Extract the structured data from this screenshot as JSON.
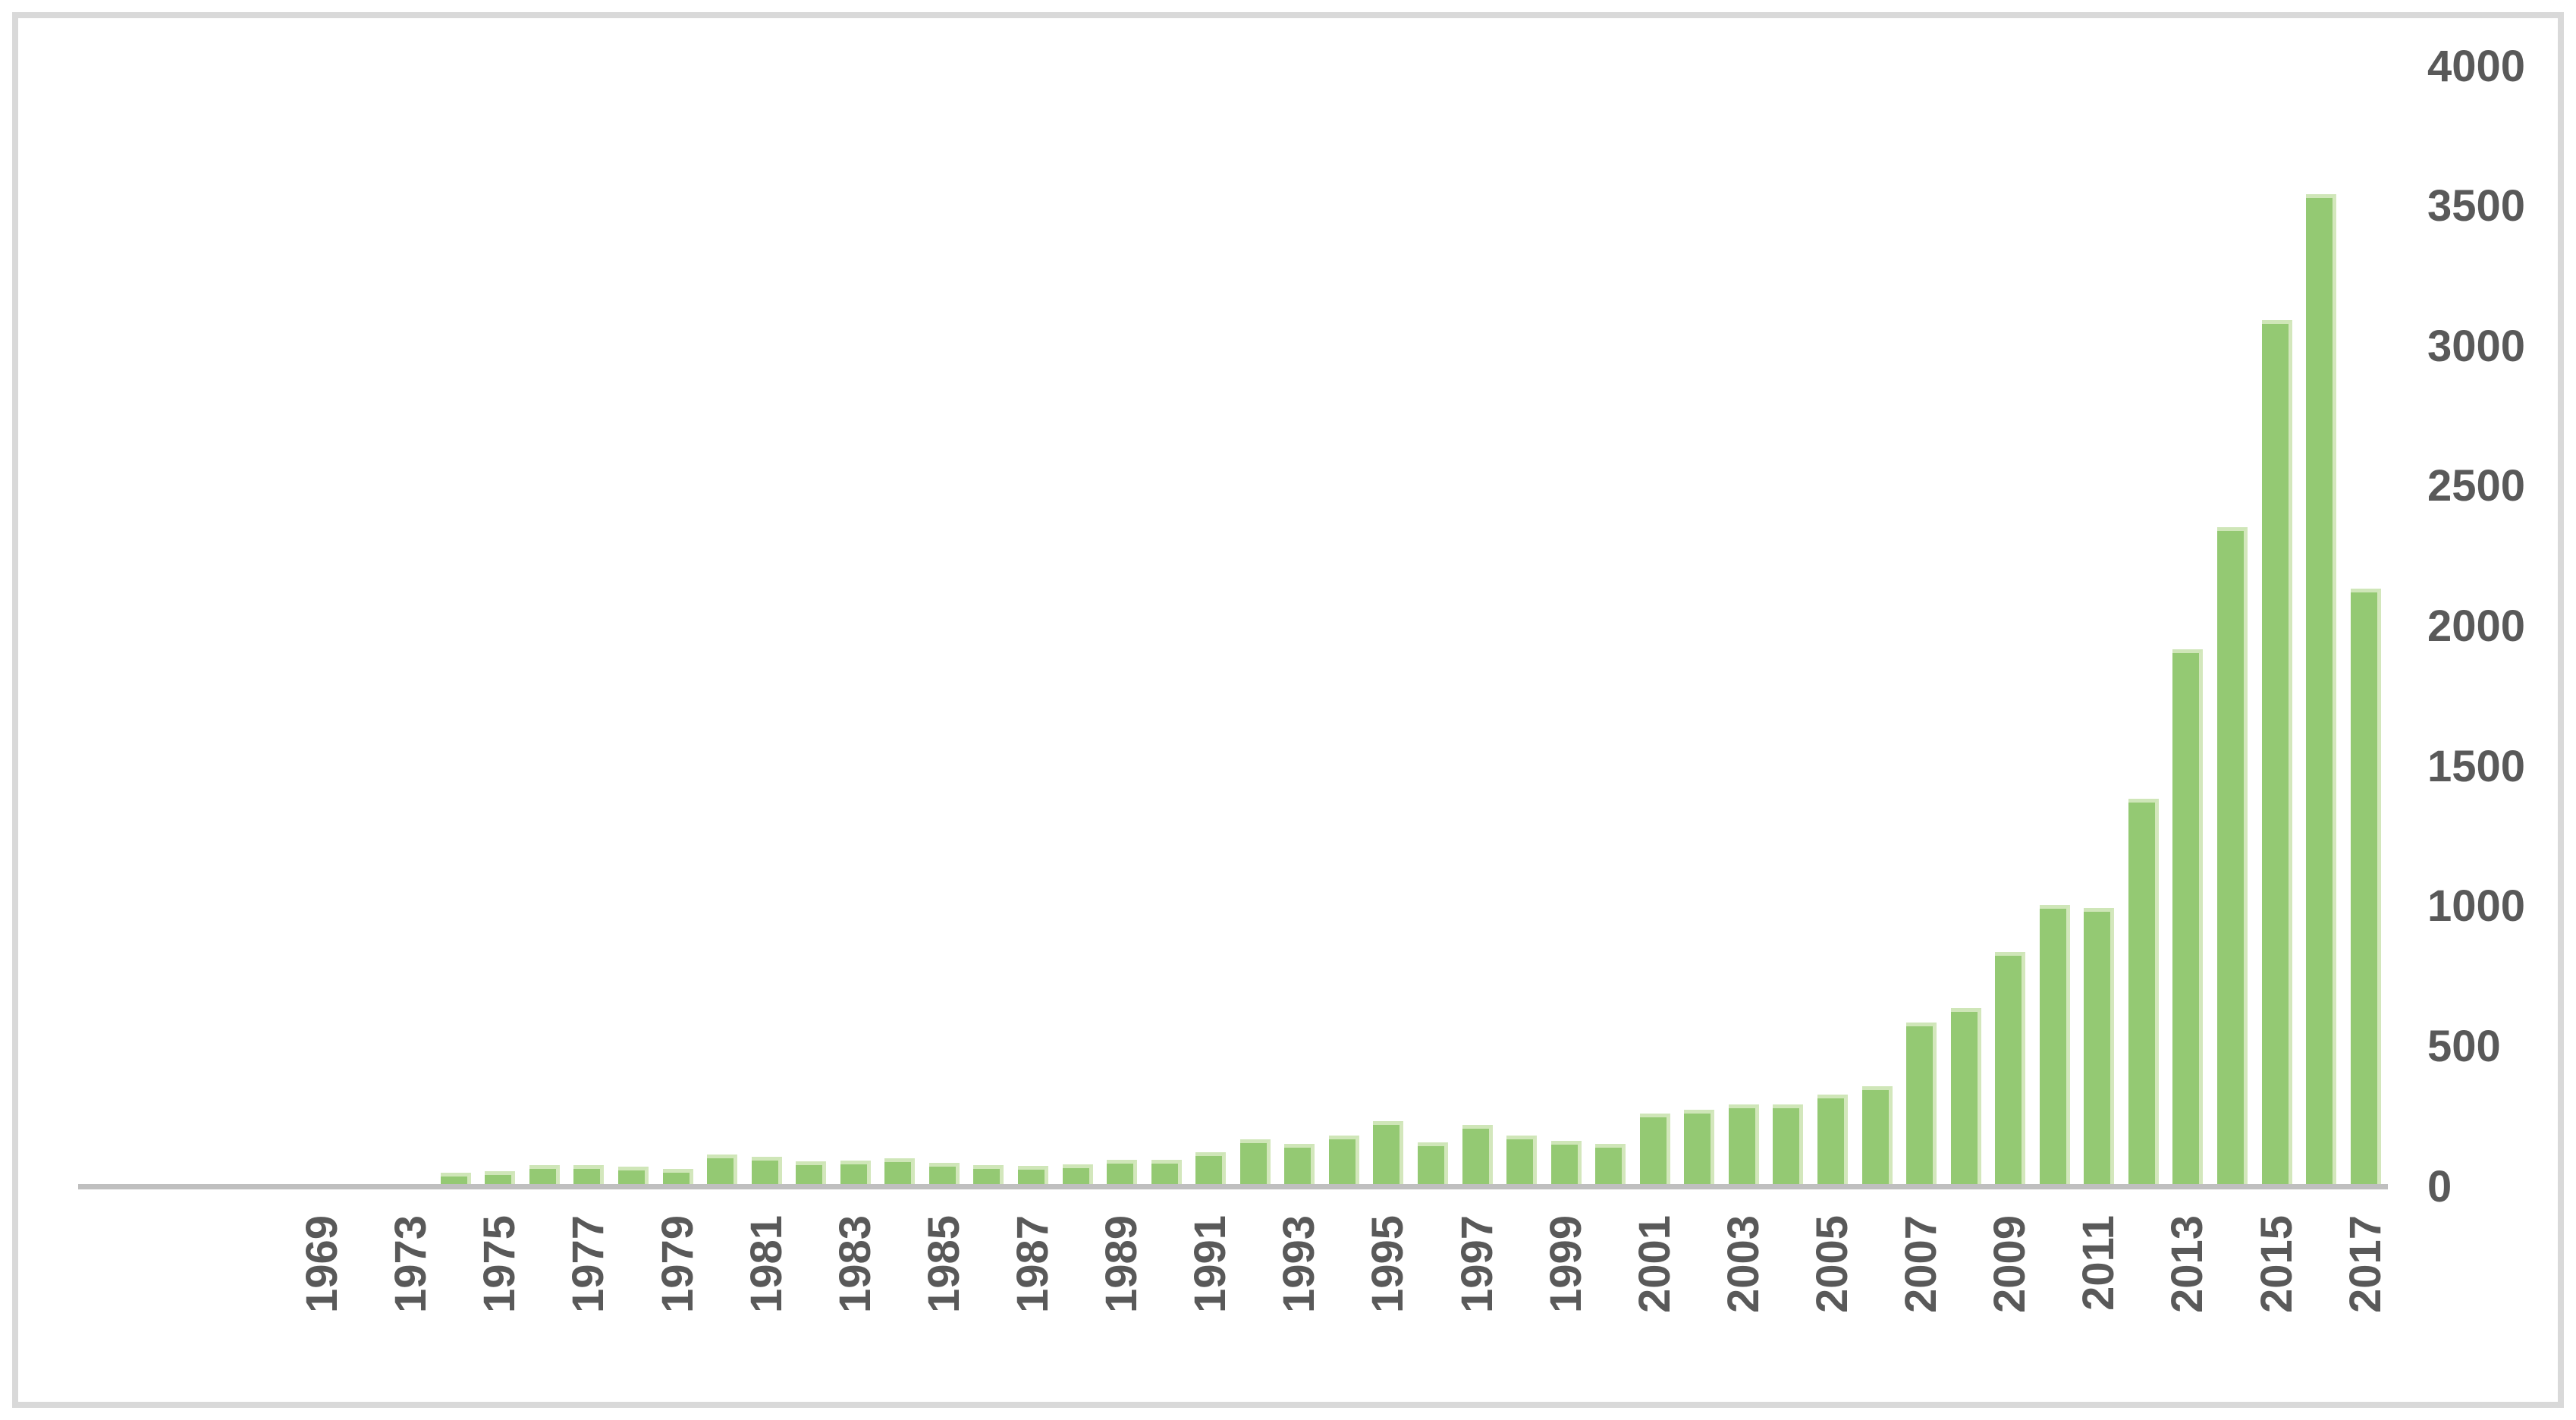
{
  "chart_data": {
    "type": "bar",
    "title": "",
    "xlabel": "",
    "ylabel": "",
    "y_ticks": [
      0,
      500,
      1000,
      1500,
      2000,
      2500,
      3000,
      3500,
      4000
    ],
    "ylim": [
      0,
      4000
    ],
    "y_axis_side": "right",
    "grid": "off",
    "legend": "none",
    "x_label_rotation_deg": -90,
    "x_labels_shown_every": 2,
    "colors": {
      "bar_fill": "#94c973",
      "bar_top_highlight": "#cfe6b8",
      "bar_right_highlight": "#d3e7bc",
      "axis_line": "#bfbfbf",
      "tick_text": "#595959",
      "chart_border": "#d9d9d9",
      "background": "#ffffff"
    },
    "leading_empty_slots": 5,
    "series": [
      {
        "year": "1969",
        "value": 1,
        "label_visible": true
      },
      {
        "year": "1971",
        "value": 1,
        "label_visible": false
      },
      {
        "year": "1973",
        "value": 2,
        "label_visible": true
      },
      {
        "year": "1974",
        "value": 40,
        "label_visible": false
      },
      {
        "year": "1975",
        "value": 46,
        "label_visible": true
      },
      {
        "year": "1976",
        "value": 67,
        "label_visible": false
      },
      {
        "year": "1977",
        "value": 67,
        "label_visible": true
      },
      {
        "year": "1978",
        "value": 63,
        "label_visible": false
      },
      {
        "year": "1979",
        "value": 53,
        "label_visible": true
      },
      {
        "year": "1980",
        "value": 105,
        "label_visible": false
      },
      {
        "year": "1981",
        "value": 97,
        "label_visible": true
      },
      {
        "year": "1982",
        "value": 80,
        "label_visible": false
      },
      {
        "year": "1983",
        "value": 84,
        "label_visible": true
      },
      {
        "year": "1984",
        "value": 93,
        "label_visible": false
      },
      {
        "year": "1985",
        "value": 76,
        "label_visible": true
      },
      {
        "year": "1986",
        "value": 67,
        "label_visible": false
      },
      {
        "year": "1987",
        "value": 65,
        "label_visible": true
      },
      {
        "year": "1988",
        "value": 70,
        "label_visible": false
      },
      {
        "year": "1989",
        "value": 87,
        "label_visible": true
      },
      {
        "year": "1990",
        "value": 86,
        "label_visible": false
      },
      {
        "year": "1991",
        "value": 114,
        "label_visible": true
      },
      {
        "year": "1992",
        "value": 159,
        "label_visible": false
      },
      {
        "year": "1993",
        "value": 144,
        "label_visible": true
      },
      {
        "year": "1994",
        "value": 172,
        "label_visible": false
      },
      {
        "year": "1995",
        "value": 225,
        "label_visible": true
      },
      {
        "year": "1996",
        "value": 150,
        "label_visible": false
      },
      {
        "year": "1997",
        "value": 210,
        "label_visible": true
      },
      {
        "year": "1998",
        "value": 174,
        "label_visible": false
      },
      {
        "year": "1999",
        "value": 155,
        "label_visible": true
      },
      {
        "year": "2000",
        "value": 144,
        "label_visible": false
      },
      {
        "year": "2001",
        "value": 252,
        "label_visible": true
      },
      {
        "year": "2002",
        "value": 265,
        "label_visible": false
      },
      {
        "year": "2003",
        "value": 284,
        "label_visible": true
      },
      {
        "year": "2004",
        "value": 285,
        "label_visible": false
      },
      {
        "year": "2005",
        "value": 319,
        "label_visible": true
      },
      {
        "year": "2006",
        "value": 349,
        "label_visible": false
      },
      {
        "year": "2007",
        "value": 577,
        "label_visible": true
      },
      {
        "year": "2008",
        "value": 628,
        "label_visible": false
      },
      {
        "year": "2009",
        "value": 828,
        "label_visible": true
      },
      {
        "year": "2010",
        "value": 996,
        "label_visible": false
      },
      {
        "year": "2011",
        "value": 985,
        "label_visible": true
      },
      {
        "year": "2012",
        "value": 1377,
        "label_visible": false
      },
      {
        "year": "2013",
        "value": 1910,
        "label_visible": true
      },
      {
        "year": "2014",
        "value": 2345,
        "label_visible": false
      },
      {
        "year": "2015",
        "value": 3085,
        "label_visible": true
      },
      {
        "year": "2016",
        "value": 3535,
        "label_visible": false
      },
      {
        "year": "2017",
        "value": 2125,
        "label_visible": true
      }
    ]
  }
}
